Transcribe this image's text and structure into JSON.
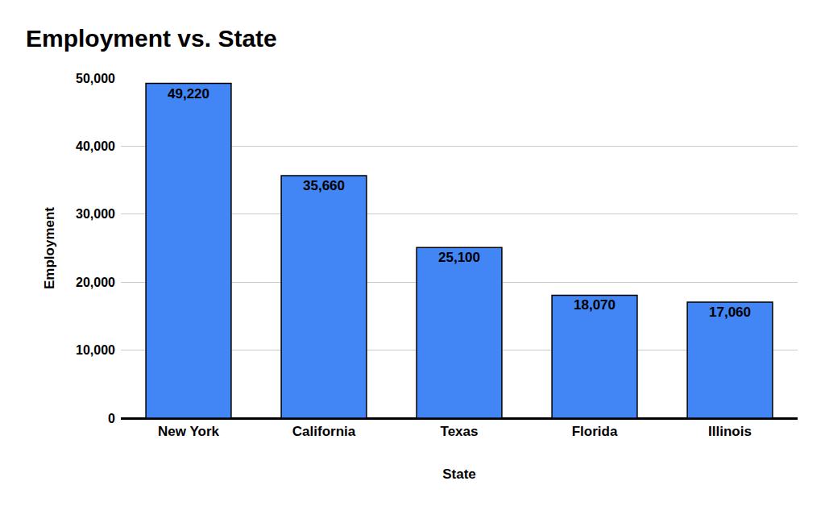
{
  "chart_data": {
    "type": "bar",
    "title": "Employment vs. State",
    "x_label": "State",
    "y_label": "Employment",
    "categories": [
      "New York",
      "California",
      "Texas",
      "Florida",
      "Illinois"
    ],
    "values": [
      49220,
      35660,
      25100,
      18070,
      17060
    ],
    "value_labels": [
      "49,220",
      "35,660",
      "25,100",
      "18,070",
      "17,060"
    ],
    "color": "#4285f4",
    "ylim": [
      0,
      50000
    ],
    "yticks": [
      0,
      {
        "value": 10000,
        "label": "10,000"
      },
      {
        "value": 20000,
        "label": "20,000"
      },
      {
        "value": 30000,
        "label": "30,000"
      },
      {
        "value": 40000,
        "label": "40,000"
      },
      {
        "value": 50000,
        "label": "50,000"
      }
    ],
    "grid": true,
    "data_labels": true
  }
}
